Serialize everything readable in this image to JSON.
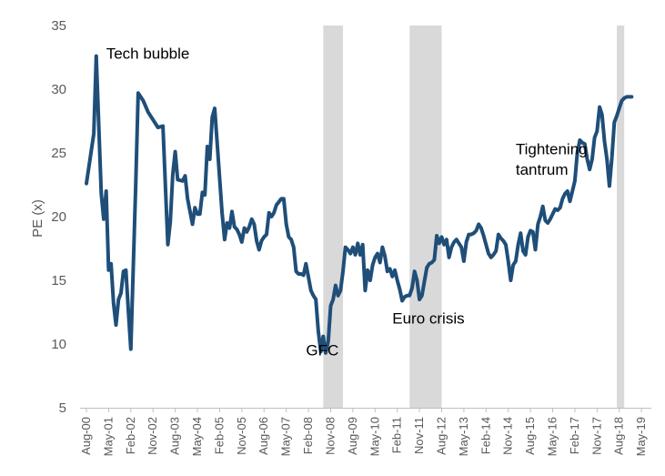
{
  "chart_data": {
    "type": "line",
    "title": "",
    "xlabel": "",
    "ylabel": "PE (x)",
    "ylim": [
      5,
      35
    ],
    "y_ticks": [
      5,
      10,
      15,
      20,
      25,
      30,
      35
    ],
    "x_ticks": [
      "Aug-00",
      "May-01",
      "Feb-02",
      "Nov-02",
      "Aug-03",
      "May-04",
      "Feb-05",
      "Nov-05",
      "Aug-06",
      "May-07",
      "Feb-08",
      "Nov-08",
      "Aug-09",
      "May-10",
      "Feb-11",
      "Nov-11",
      "Aug-12",
      "May-13",
      "Feb-14",
      "Nov-14",
      "Aug-15",
      "May-16",
      "Feb-17",
      "Nov-17",
      "Aug-18",
      "May-19"
    ],
    "x_range": [
      "2000-08",
      "2019-09"
    ],
    "grid": false,
    "line_color": "#1F4E79",
    "shade_color": "#D9D9D9",
    "shaded_periods": [
      {
        "start": "2008-08",
        "end": "2009-04"
      },
      {
        "start": "2011-07",
        "end": "2012-08"
      },
      {
        "start": "2018-07",
        "end": "2018-10"
      }
    ],
    "annotations": [
      {
        "text": "Tech bubble",
        "x": "2001-04",
        "y": 32.4
      },
      {
        "text": "GFC",
        "x": "2008-01",
        "y": 9.1
      },
      {
        "text": "Euro crisis",
        "x": "2010-12",
        "y": 11.6
      },
      {
        "text": "Tightening",
        "x": "2015-02",
        "y": 24.9
      },
      {
        "text": "tantrum",
        "x": "2015-02",
        "y": 23.3
      }
    ],
    "series": [
      {
        "points": [
          [
            "2000-08",
            22.6
          ],
          [
            "2000-11",
            26.5
          ],
          [
            "2000-12",
            32.6
          ],
          [
            "2001-02",
            21.8
          ],
          [
            "2001-03",
            19.8
          ],
          [
            "2001-04",
            22.0
          ],
          [
            "2001-05",
            15.8
          ],
          [
            "2001-06",
            16.3
          ],
          [
            "2001-07",
            13.2
          ],
          [
            "2001-08",
            11.5
          ],
          [
            "2001-09",
            13.5
          ],
          [
            "2001-10",
            14.0
          ],
          [
            "2001-11",
            15.7
          ],
          [
            "2001-12",
            15.8
          ],
          [
            "2002-01",
            12.6
          ],
          [
            "2002-02",
            9.6
          ],
          [
            "2002-04",
            22.5
          ],
          [
            "2002-05",
            29.7
          ],
          [
            "2002-07",
            29.1
          ],
          [
            "2002-09",
            28.2
          ],
          [
            "2002-11",
            27.6
          ],
          [
            "2003-01",
            27.0
          ],
          [
            "2003-03",
            27.1
          ],
          [
            "2003-05",
            17.8
          ],
          [
            "2003-06",
            19.6
          ],
          [
            "2003-07",
            23.3
          ],
          [
            "2003-08",
            25.1
          ],
          [
            "2003-09",
            22.9
          ],
          [
            "2003-11",
            22.8
          ],
          [
            "2003-12",
            23.2
          ],
          [
            "2004-01",
            21.4
          ],
          [
            "2004-03",
            19.4
          ],
          [
            "2004-04",
            20.7
          ],
          [
            "2004-05",
            20.2
          ],
          [
            "2004-06",
            20.2
          ],
          [
            "2004-07",
            21.9
          ],
          [
            "2004-08",
            21.7
          ],
          [
            "2004-09",
            25.5
          ],
          [
            "2004-10",
            24.5
          ],
          [
            "2004-11",
            27.8
          ],
          [
            "2004-12",
            28.5
          ],
          [
            "2005-01",
            25.8
          ],
          [
            "2005-03",
            20.3
          ],
          [
            "2005-04",
            18.2
          ],
          [
            "2005-05",
            19.5
          ],
          [
            "2005-06",
            19.1
          ],
          [
            "2005-07",
            20.4
          ],
          [
            "2005-08",
            19.2
          ],
          [
            "2005-09",
            19.0
          ],
          [
            "2005-10",
            18.6
          ],
          [
            "2005-11",
            18.0
          ],
          [
            "2005-12",
            19.1
          ],
          [
            "2006-01",
            18.8
          ],
          [
            "2006-02",
            19.2
          ],
          [
            "2006-03",
            19.8
          ],
          [
            "2006-04",
            19.4
          ],
          [
            "2006-05",
            18.1
          ],
          [
            "2006-06",
            17.4
          ],
          [
            "2006-07",
            18.1
          ],
          [
            "2006-08",
            18.4
          ],
          [
            "2006-09",
            18.6
          ],
          [
            "2006-10",
            20.3
          ],
          [
            "2006-11",
            20.0
          ],
          [
            "2006-12",
            20.3
          ],
          [
            "2007-01",
            20.9
          ],
          [
            "2007-03",
            21.4
          ],
          [
            "2007-04",
            21.4
          ],
          [
            "2007-05",
            19.4
          ],
          [
            "2007-06",
            18.4
          ],
          [
            "2007-07",
            18.2
          ],
          [
            "2007-08",
            17.6
          ],
          [
            "2007-09",
            15.7
          ],
          [
            "2007-10",
            15.5
          ],
          [
            "2007-11",
            15.5
          ],
          [
            "2007-12",
            15.4
          ],
          [
            "2008-01",
            16.3
          ],
          [
            "2008-03",
            14.2
          ],
          [
            "2008-04",
            13.8
          ],
          [
            "2008-05",
            13.5
          ],
          [
            "2008-06",
            11.0
          ],
          [
            "2008-07",
            9.4
          ],
          [
            "2008-08",
            10.6
          ],
          [
            "2008-09",
            9.3
          ],
          [
            "2008-10",
            10.2
          ],
          [
            "2008-11",
            13.0
          ],
          [
            "2008-12",
            13.5
          ],
          [
            "2009-01",
            14.6
          ],
          [
            "2009-02",
            13.8
          ],
          [
            "2009-03",
            14.2
          ],
          [
            "2009-04",
            15.7
          ],
          [
            "2009-05",
            17.6
          ],
          [
            "2009-06",
            17.4
          ],
          [
            "2009-07",
            17.1
          ],
          [
            "2009-08",
            17.6
          ],
          [
            "2009-09",
            17.0
          ],
          [
            "2009-10",
            17.9
          ],
          [
            "2009-11",
            17.0
          ],
          [
            "2009-12",
            17.8
          ],
          [
            "2010-01",
            14.2
          ],
          [
            "2010-02",
            15.8
          ],
          [
            "2010-03",
            15.0
          ],
          [
            "2010-04",
            16.2
          ],
          [
            "2010-05",
            16.8
          ],
          [
            "2010-06",
            17.1
          ],
          [
            "2010-07",
            16.4
          ],
          [
            "2010-08",
            17.6
          ],
          [
            "2010-09",
            16.9
          ],
          [
            "2010-10",
            15.7
          ],
          [
            "2010-11",
            15.9
          ],
          [
            "2010-12",
            15.3
          ],
          [
            "2011-01",
            15.8
          ],
          [
            "2011-02",
            15.0
          ],
          [
            "2011-03",
            14.3
          ],
          [
            "2011-04",
            13.4
          ],
          [
            "2011-05",
            13.7
          ],
          [
            "2011-06",
            13.8
          ],
          [
            "2011-07",
            13.8
          ],
          [
            "2011-08",
            14.4
          ],
          [
            "2011-09",
            15.7
          ],
          [
            "2011-10",
            15.0
          ],
          [
            "2011-11",
            13.5
          ],
          [
            "2011-12",
            13.8
          ],
          [
            "2012-01",
            14.9
          ],
          [
            "2012-02",
            16.0
          ],
          [
            "2012-03",
            16.3
          ],
          [
            "2012-04",
            16.4
          ],
          [
            "2012-05",
            16.6
          ],
          [
            "2012-06",
            18.5
          ],
          [
            "2012-07",
            17.9
          ],
          [
            "2012-08",
            18.4
          ],
          [
            "2012-09",
            17.8
          ],
          [
            "2012-10",
            18.2
          ],
          [
            "2012-11",
            16.8
          ],
          [
            "2012-12",
            17.6
          ],
          [
            "2013-01",
            18.0
          ],
          [
            "2013-02",
            18.2
          ],
          [
            "2013-03",
            17.9
          ],
          [
            "2013-04",
            17.6
          ],
          [
            "2013-05",
            16.5
          ],
          [
            "2013-06",
            18.0
          ],
          [
            "2013-07",
            18.6
          ],
          [
            "2013-08",
            18.6
          ],
          [
            "2013-09",
            18.7
          ],
          [
            "2013-10",
            18.9
          ],
          [
            "2013-11",
            19.4
          ],
          [
            "2013-12",
            19.1
          ],
          [
            "2014-01",
            18.5
          ],
          [
            "2014-02",
            17.8
          ],
          [
            "2014-03",
            17.1
          ],
          [
            "2014-04",
            16.8
          ],
          [
            "2014-05",
            17.0
          ],
          [
            "2014-06",
            17.3
          ],
          [
            "2014-07",
            18.6
          ],
          [
            "2014-08",
            18.3
          ],
          [
            "2014-09",
            18.1
          ],
          [
            "2014-10",
            17.8
          ],
          [
            "2014-11",
            16.5
          ],
          [
            "2014-12",
            15.0
          ],
          [
            "2015-01",
            16.2
          ],
          [
            "2015-02",
            16.5
          ],
          [
            "2015-03",
            17.8
          ],
          [
            "2015-04",
            18.7
          ],
          [
            "2015-05",
            17.3
          ],
          [
            "2015-06",
            17.0
          ],
          [
            "2015-07",
            18.4
          ],
          [
            "2015-08",
            18.9
          ],
          [
            "2015-09",
            18.8
          ],
          [
            "2015-10",
            17.4
          ],
          [
            "2015-11",
            19.4
          ],
          [
            "2015-12",
            20.0
          ],
          [
            "2016-01",
            20.8
          ],
          [
            "2016-02",
            19.7
          ],
          [
            "2016-03",
            19.5
          ],
          [
            "2016-04",
            19.8
          ],
          [
            "2016-05",
            20.2
          ],
          [
            "2016-06",
            20.6
          ],
          [
            "2016-07",
            20.5
          ],
          [
            "2016-08",
            20.7
          ],
          [
            "2016-09",
            21.4
          ],
          [
            "2016-10",
            21.8
          ],
          [
            "2016-11",
            22.0
          ],
          [
            "2016-12",
            21.2
          ],
          [
            "2017-01",
            22.0
          ],
          [
            "2017-02",
            22.8
          ],
          [
            "2017-03",
            25.0
          ],
          [
            "2017-04",
            26.0
          ],
          [
            "2017-05",
            25.8
          ],
          [
            "2017-06",
            25.7
          ],
          [
            "2017-07",
            24.5
          ],
          [
            "2017-08",
            23.7
          ],
          [
            "2017-09",
            24.5
          ],
          [
            "2017-10",
            26.2
          ],
          [
            "2017-11",
            26.7
          ],
          [
            "2017-12",
            28.6
          ],
          [
            "2018-01",
            28.0
          ],
          [
            "2018-02",
            25.9
          ],
          [
            "2018-03",
            24.5
          ],
          [
            "2018-04",
            22.4
          ],
          [
            "2018-05",
            24.6
          ],
          [
            "2018-06",
            27.4
          ],
          [
            "2018-07",
            27.9
          ],
          [
            "2018-08",
            28.5
          ],
          [
            "2018-09",
            29.1
          ],
          [
            "2018-10",
            29.3
          ],
          [
            "2018-11",
            29.4
          ],
          [
            "2018-12",
            29.4
          ],
          [
            "2019-01",
            29.4
          ]
        ]
      }
    ]
  }
}
